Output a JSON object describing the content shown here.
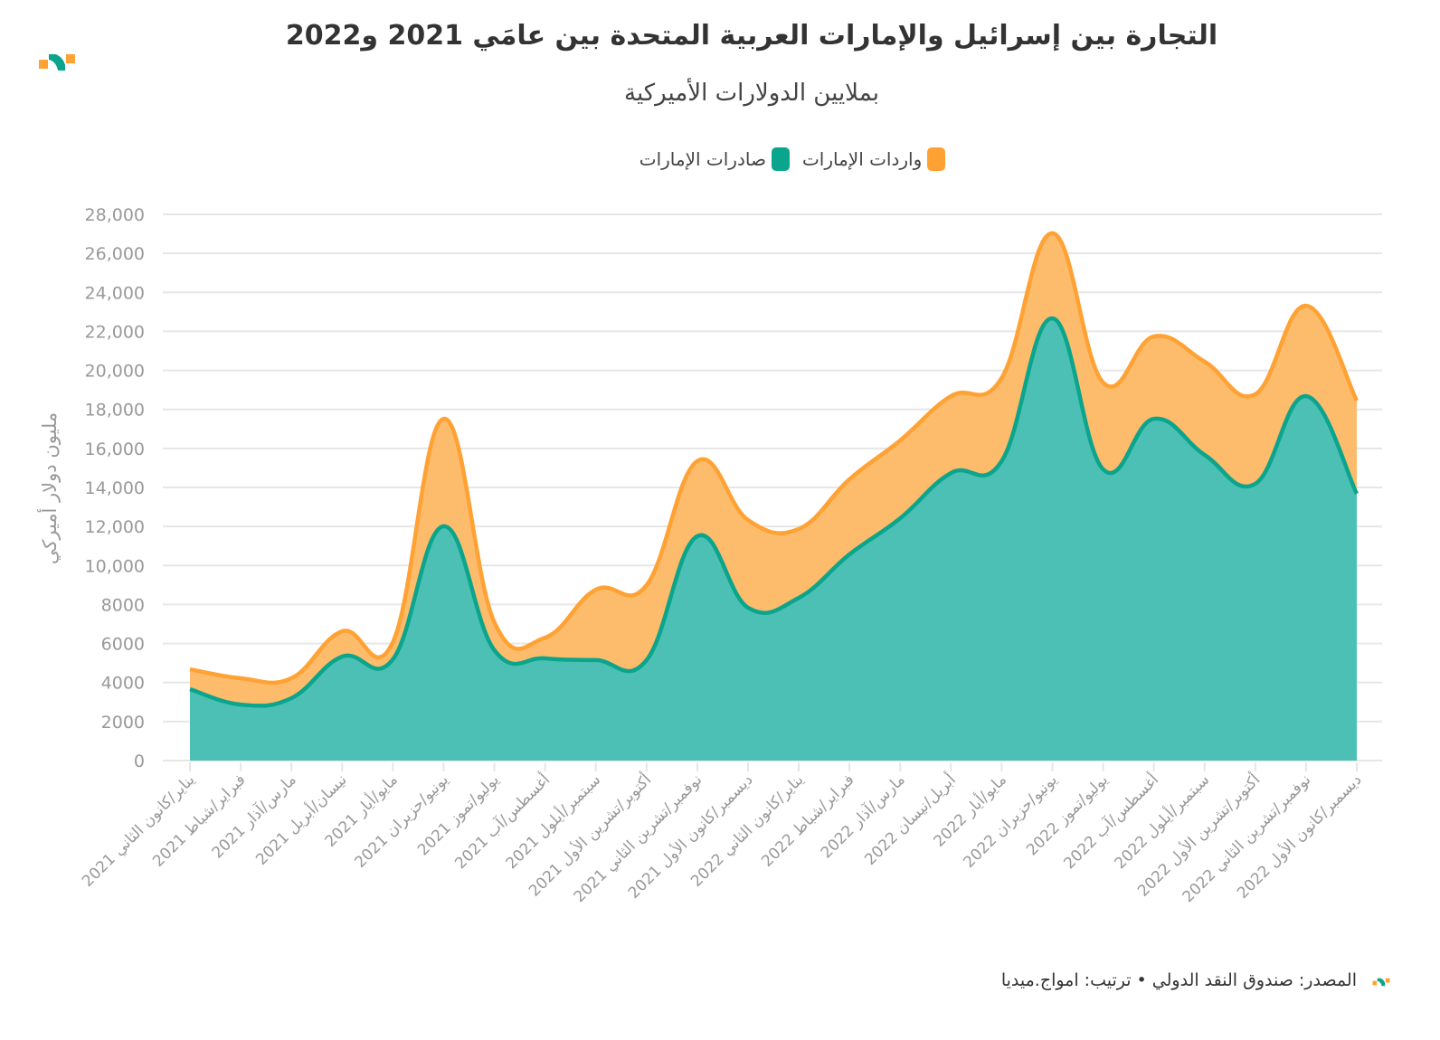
{
  "header": {
    "title": "التجارة بين إسرائيل والإمارات العربية المتحدة بين عامَي 2021 و2022",
    "subtitle": "بملايين الدولارات الأميركية"
  },
  "footer": {
    "source": "المصدر: صندوق النقد الدولي • ترتيب: امواج.ميديا"
  },
  "colors": {
    "exports": "#0aa58c",
    "exports_fill": "#4cc0b4",
    "imports": "#ffa233",
    "imports_fill": "#fdbb6c",
    "grid": "#e6e6e6",
    "axis_text": "#999999"
  },
  "chart_data": {
    "type": "area",
    "stacked": true,
    "title": "التجارة بين إسرائيل والإمارات العربية المتحدة بين عامَي 2021 و2022",
    "subtitle": "بملايين الدولارات الأميركية",
    "ylabel": "مليون دولار أميركي",
    "xlabel": "",
    "ylim": [
      0,
      28000
    ],
    "yticks": [
      0,
      2000,
      4000,
      6000,
      8000,
      10000,
      12000,
      14000,
      16000,
      18000,
      20000,
      22000,
      24000,
      26000,
      28000
    ],
    "ytick_labels": [
      "0",
      "2000",
      "4000",
      "6000",
      "8000",
      "10,000",
      "12,000",
      "14,000",
      "16,000",
      "18,000",
      "20,000",
      "22,000",
      "24,000",
      "26,000",
      "28,000"
    ],
    "grid": true,
    "legend_position": "top-center",
    "categories": [
      "يناير/كانون الثاني 2021",
      "فبراير/شباط 2021",
      "مارس/آذار 2021",
      "نيسان/أبريل 2021",
      "مايو/أيار 2021",
      "يونيو/حزيران 2021",
      "يوليو/تموز 2021",
      "أغسطس/آب 2021",
      "سبتمبر/أيلول 2021",
      "أكتوبر/تشرين الأول 2021",
      "نوفمبر/تشرين الثاني 2021",
      "ديسمبر/كانون الأول 2021",
      "يناير/كانون الثاني 2022",
      "فبراير/شباط 2022",
      "مارس/آذار 2022",
      "أبريل/نيسان 2022",
      "مايو/أيار 2022",
      "يونيو/حزيران 2022",
      "يوليو/تموز 2022",
      "أغسطس/آب 2022",
      "سبتمبر/أيلول 2022",
      "أكتوبر/تشرين الأول 2022",
      "نوفمبر/تشرين الثاني 2022",
      "ديسمبر/كانون الأول 2022"
    ],
    "series": [
      {
        "name": "صادرات الإمارات",
        "color": "#0aa58c",
        "values": [
          3660,
          2870,
          3200,
          5330,
          5190,
          12010,
          5660,
          5240,
          5150,
          5150,
          11500,
          7840,
          8340,
          10570,
          12420,
          14740,
          15350,
          22670,
          14930,
          17520,
          15670,
          14190,
          18680,
          13680
        ]
      },
      {
        "name": "واردات الإمارات",
        "color": "#ffa233",
        "values": [
          1020,
          1350,
          1020,
          1300,
          880,
          5510,
          1430,
          1060,
          3610,
          3840,
          3850,
          4490,
          3530,
          3850,
          3990,
          3940,
          4260,
          4360,
          4450,
          4220,
          4780,
          4590,
          4640,
          4770
        ]
      }
    ]
  }
}
